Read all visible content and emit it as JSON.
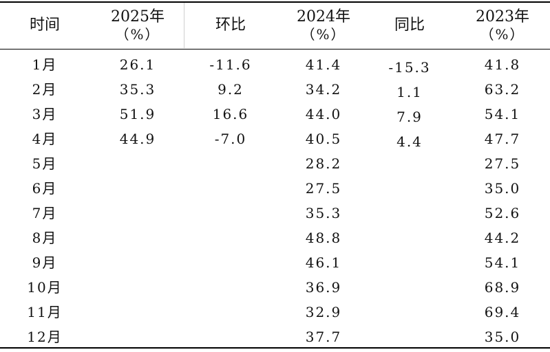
{
  "headers": {
    "time": "时间",
    "y2025": "2025年",
    "y2025_unit": "（%）",
    "mom": "环比",
    "y2024": "2024年",
    "y2024_unit": "（%）",
    "yoy": "同比",
    "y2023": "2023年",
    "y2023_unit": "（%）"
  },
  "rows": [
    {
      "month": "1月",
      "y2025": "26.1",
      "mom": "-11.6",
      "y2024": "41.4",
      "yoy": "-15.3",
      "y2023": "41.8"
    },
    {
      "month": "2月",
      "y2025": "35.3",
      "mom": "9.2",
      "y2024": "34.2",
      "yoy": "1.1",
      "y2023": "63.2"
    },
    {
      "month": "3月",
      "y2025": "51.9",
      "mom": "16.6",
      "y2024": "44.0",
      "yoy": "7.9",
      "y2023": "54.1"
    },
    {
      "month": "4月",
      "y2025": "44.9",
      "mom": "-7.0",
      "y2024": "40.5",
      "yoy": "4.4",
      "y2023": "47.7"
    },
    {
      "month": "5月",
      "y2025": "",
      "mom": "",
      "y2024": "28.2",
      "yoy": "",
      "y2023": "27.5"
    },
    {
      "month": "6月",
      "y2025": "",
      "mom": "",
      "y2024": "27.5",
      "yoy": "",
      "y2023": "35.0"
    },
    {
      "month": "7月",
      "y2025": "",
      "mom": "",
      "y2024": "35.3",
      "yoy": "",
      "y2023": "52.6"
    },
    {
      "month": "8月",
      "y2025": "",
      "mom": "",
      "y2024": "48.8",
      "yoy": "",
      "y2023": "44.2"
    },
    {
      "month": "9月",
      "y2025": "",
      "mom": "",
      "y2024": "46.1",
      "yoy": "",
      "y2023": "54.1"
    },
    {
      "month": "10月",
      "y2025": "",
      "mom": "",
      "y2024": "36.9",
      "yoy": "",
      "y2023": "68.9"
    },
    {
      "month": "11月",
      "y2025": "",
      "mom": "",
      "y2024": "32.9",
      "yoy": "",
      "y2023": "69.4"
    },
    {
      "month": "12月",
      "y2025": "",
      "mom": "",
      "y2024": "37.7",
      "yoy": "",
      "y2023": "35.0"
    }
  ]
}
